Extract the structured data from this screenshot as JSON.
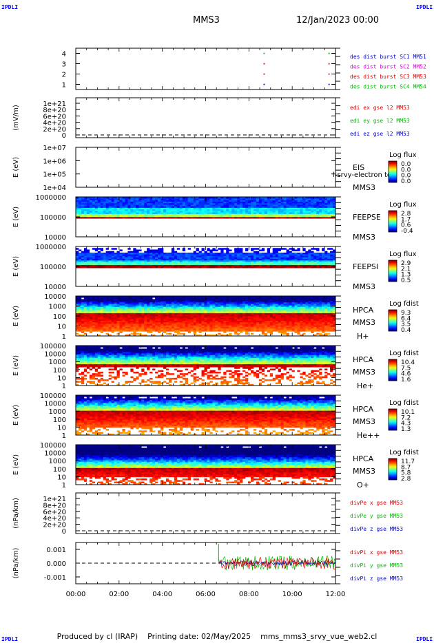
{
  "header": {
    "spacecraft": "MMS3",
    "date": "12/Jan/2023 00:00",
    "corner_label": "IPDLI"
  },
  "footer": {
    "produced_by": "Produced by cl (IRAP)",
    "printing_date": "Printing date: 02/May/2025",
    "script": "mms_mms3_srvy_vue_web2.cl"
  },
  "chart_data": {
    "type": "multi-panel time series / spectrogram",
    "x_tick_labels": [
      "00:00",
      "02:00",
      "04:00",
      "06:00",
      "08:00",
      "10:00",
      "12:00"
    ],
    "x_range_hours": [
      0,
      12
    ],
    "panels": [
      {
        "id": "burst",
        "ylabel": "",
        "yticks": [
          "4",
          "3",
          "2",
          "1"
        ],
        "yvals": [
          4,
          3,
          2,
          1
        ],
        "ylim": [
          0.5,
          4.5
        ],
        "legend": [
          {
            "label": "des dist burst SC1 MM51",
            "color": "#0000cc"
          },
          {
            "label": "des dist burst SC2 MM52",
            "color": "#dd00dd"
          },
          {
            "label": "des dist burst SC3 MM53",
            "color": "#dd0000"
          },
          {
            "label": "des dist burst SC4 MM54",
            "color": "#00bb00"
          }
        ],
        "markers": [
          {
            "t": 8.7,
            "y": 4,
            "color": "#00bb00"
          },
          {
            "t": 8.7,
            "y": 3,
            "color": "#dd0000"
          },
          {
            "t": 8.7,
            "y": 2,
            "color": "#dd0000"
          },
          {
            "t": 8.7,
            "y": 1,
            "color": "#0000cc"
          },
          {
            "t": 11.7,
            "y": 4,
            "color": "#00bb00"
          },
          {
            "t": 11.7,
            "y": 3,
            "color": "#dd0000"
          },
          {
            "t": 11.7,
            "y": 2,
            "color": "#dd0000"
          },
          {
            "t": 11.7,
            "y": 1,
            "color": "#0000cc"
          }
        ]
      },
      {
        "id": "edi",
        "ylabel": "(mV/m)",
        "yticks": [
          "1e+21",
          "8e+20",
          "6e+20",
          "4e+20",
          "2e+20",
          "0"
        ],
        "yvals": [
          1,
          0.8,
          0.6,
          0.4,
          0.2,
          0
        ],
        "zero_line": true,
        "legend": [
          {
            "label": "edi ex gse l2 MM53",
            "color": "#dd0000"
          },
          {
            "label": "edi ey gse l2 MM53",
            "color": "#00bb00"
          },
          {
            "label": "edi ez gse l2 MM53",
            "color": "#0000cc"
          }
        ]
      },
      {
        "id": "eis",
        "ylabel": "E (eV)",
        "yticks": [
          "1e+07",
          "1e+06",
          "1e+05",
          "1e+04"
        ],
        "log_range": [
          4,
          7
        ],
        "instrument": "EIS",
        "sub_label": "MMS3",
        "overlay_text": "l-srvy-electron to",
        "colorbar": {
          "title": "Log flux",
          "ticks": [
            "0.0",
            "0.0",
            "0.0",
            "0.0"
          ]
        }
      },
      {
        "id": "feepse",
        "ylabel": "E (eV)",
        "yticks": [
          "1000000",
          "100000",
          "10000"
        ],
        "log_range": [
          4,
          6
        ],
        "instrument": "FEEPSE",
        "sub_label": "MMS3",
        "colorbar": {
          "title": "Log flux",
          "ticks": [
            "2.8",
            "1.7",
            "0.6",
            "-0.4"
          ]
        }
      },
      {
        "id": "feepsi",
        "ylabel": "E (eV)",
        "yticks": [
          "1000000",
          "100000",
          "10000"
        ],
        "log_range": [
          4,
          6
        ],
        "instrument": "FEEPSI",
        "sub_label": "MMS3",
        "colorbar": {
          "title": "Log flux",
          "ticks": [
            "2.9",
            "2.1",
            "1.3",
            "0.5"
          ]
        }
      },
      {
        "id": "hpca_h",
        "ylabel": "E (eV)",
        "yticks": [
          "10000",
          "1000",
          "100",
          "10",
          "1"
        ],
        "log_range": [
          0,
          4.6
        ],
        "instrument": "HPCA",
        "sub_label": "MMS3",
        "species": "H+",
        "colorbar": {
          "title": "Log fdist",
          "ticks": [
            "9.3",
            "6.4",
            "3.5",
            "0.4"
          ]
        }
      },
      {
        "id": "hpca_he",
        "ylabel": "E (eV)",
        "yticks": [
          "100000",
          "10000",
          "1000",
          "100",
          "10",
          "1"
        ],
        "log_range": [
          0,
          5
        ],
        "instrument": "HPCA",
        "sub_label": "MMS3",
        "species": "He+",
        "colorbar": {
          "title": "Log fdist",
          "ticks": [
            "10.4",
            "7.5",
            "4.6",
            "1.6"
          ]
        }
      },
      {
        "id": "hpca_hepp",
        "ylabel": "E (eV)",
        "yticks": [
          "100000",
          "10000",
          "1000",
          "100",
          "10",
          "1"
        ],
        "log_range": [
          0,
          5
        ],
        "instrument": "HPCA",
        "sub_label": "MMS3",
        "species": "He++",
        "colorbar": {
          "title": "Log fdist",
          "ticks": [
            "10.1",
            "7.2",
            "4.3",
            "1.3"
          ]
        }
      },
      {
        "id": "hpca_o",
        "ylabel": "E (eV)",
        "yticks": [
          "100000",
          "10000",
          "1000",
          "100",
          "10",
          "1"
        ],
        "log_range": [
          0,
          5
        ],
        "instrument": "HPCA",
        "sub_label": "MMS3",
        "species": "O+",
        "colorbar": {
          "title": "Log fdist",
          "ticks": [
            "11.7",
            "8.7",
            "5.8",
            "2.8"
          ]
        }
      },
      {
        "id": "divpe",
        "ylabel": "(nPa/km)",
        "yticks": [
          "1e+21",
          "8e+20",
          "6e+20",
          "4e+20",
          "2e+20",
          "0"
        ],
        "yvals": [
          1,
          0.8,
          0.6,
          0.4,
          0.2,
          0
        ],
        "zero_line": true,
        "legend": [
          {
            "label": "divPe x gse MM53",
            "color": "#dd0000"
          },
          {
            "label": "divPe y gse MM53",
            "color": "#00bb00"
          },
          {
            "label": "divPe z gse MM53",
            "color": "#0000cc"
          }
        ]
      },
      {
        "id": "divpi",
        "ylabel": "(nPa/km)",
        "yticks": [
          "0.001",
          "0.000",
          "-0.001"
        ],
        "yvals": [
          0.001,
          0,
          -0.001
        ],
        "ylim": [
          -0.0015,
          0.0015
        ],
        "data_start_hours": 6.6,
        "zero_line": true,
        "legend": [
          {
            "label": "divPi x gse MM53",
            "color": "#dd0000"
          },
          {
            "label": "divPi y gse MM53",
            "color": "#00bb00"
          },
          {
            "label": "divPi z gse MM53",
            "color": "#0000cc"
          }
        ]
      }
    ]
  }
}
